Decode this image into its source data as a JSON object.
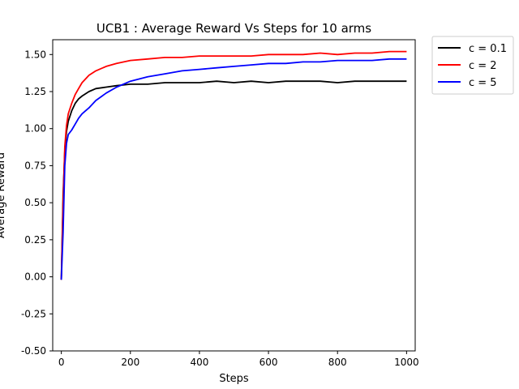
{
  "chart_data": {
    "type": "line",
    "title": "UCB1 : Average Reward Vs Steps for 10 arms",
    "xlabel": "Steps",
    "ylabel": "Average Reward",
    "xlim": [
      -25,
      1025
    ],
    "ylim": [
      -0.5,
      1.6
    ],
    "x_ticks": [
      0,
      200,
      400,
      600,
      800,
      1000
    ],
    "y_ticks": [
      -0.5,
      -0.25,
      0.0,
      0.25,
      0.5,
      0.75,
      1.0,
      1.25,
      1.5
    ],
    "legend_position": "outside-top-right",
    "grid": false,
    "x": [
      0,
      5,
      10,
      15,
      20,
      30,
      40,
      50,
      60,
      80,
      100,
      130,
      160,
      200,
      250,
      300,
      350,
      400,
      450,
      500,
      550,
      600,
      650,
      700,
      750,
      800,
      850,
      900,
      950,
      1000
    ],
    "series": [
      {
        "name": "c = 0.1",
        "color": "#000000",
        "values": [
          -0.02,
          0.55,
          0.85,
          0.98,
          1.05,
          1.12,
          1.17,
          1.2,
          1.22,
          1.25,
          1.27,
          1.28,
          1.29,
          1.3,
          1.3,
          1.31,
          1.31,
          1.31,
          1.32,
          1.31,
          1.32,
          1.31,
          1.32,
          1.32,
          1.32,
          1.31,
          1.32,
          1.32,
          1.32,
          1.32
        ]
      },
      {
        "name": "c = 2",
        "color": "#ff0000",
        "values": [
          -0.02,
          0.5,
          0.88,
          1.02,
          1.1,
          1.17,
          1.23,
          1.27,
          1.31,
          1.36,
          1.39,
          1.42,
          1.44,
          1.46,
          1.47,
          1.48,
          1.48,
          1.49,
          1.49,
          1.49,
          1.49,
          1.5,
          1.5,
          1.5,
          1.51,
          1.5,
          1.51,
          1.51,
          1.52,
          1.52
        ]
      },
      {
        "name": "c = 5",
        "color": "#0000ff",
        "values": [
          -0.02,
          0.3,
          0.75,
          0.9,
          0.96,
          0.99,
          1.03,
          1.07,
          1.1,
          1.14,
          1.19,
          1.24,
          1.28,
          1.32,
          1.35,
          1.37,
          1.39,
          1.4,
          1.41,
          1.42,
          1.43,
          1.44,
          1.44,
          1.45,
          1.45,
          1.46,
          1.46,
          1.46,
          1.47,
          1.47
        ]
      }
    ]
  }
}
